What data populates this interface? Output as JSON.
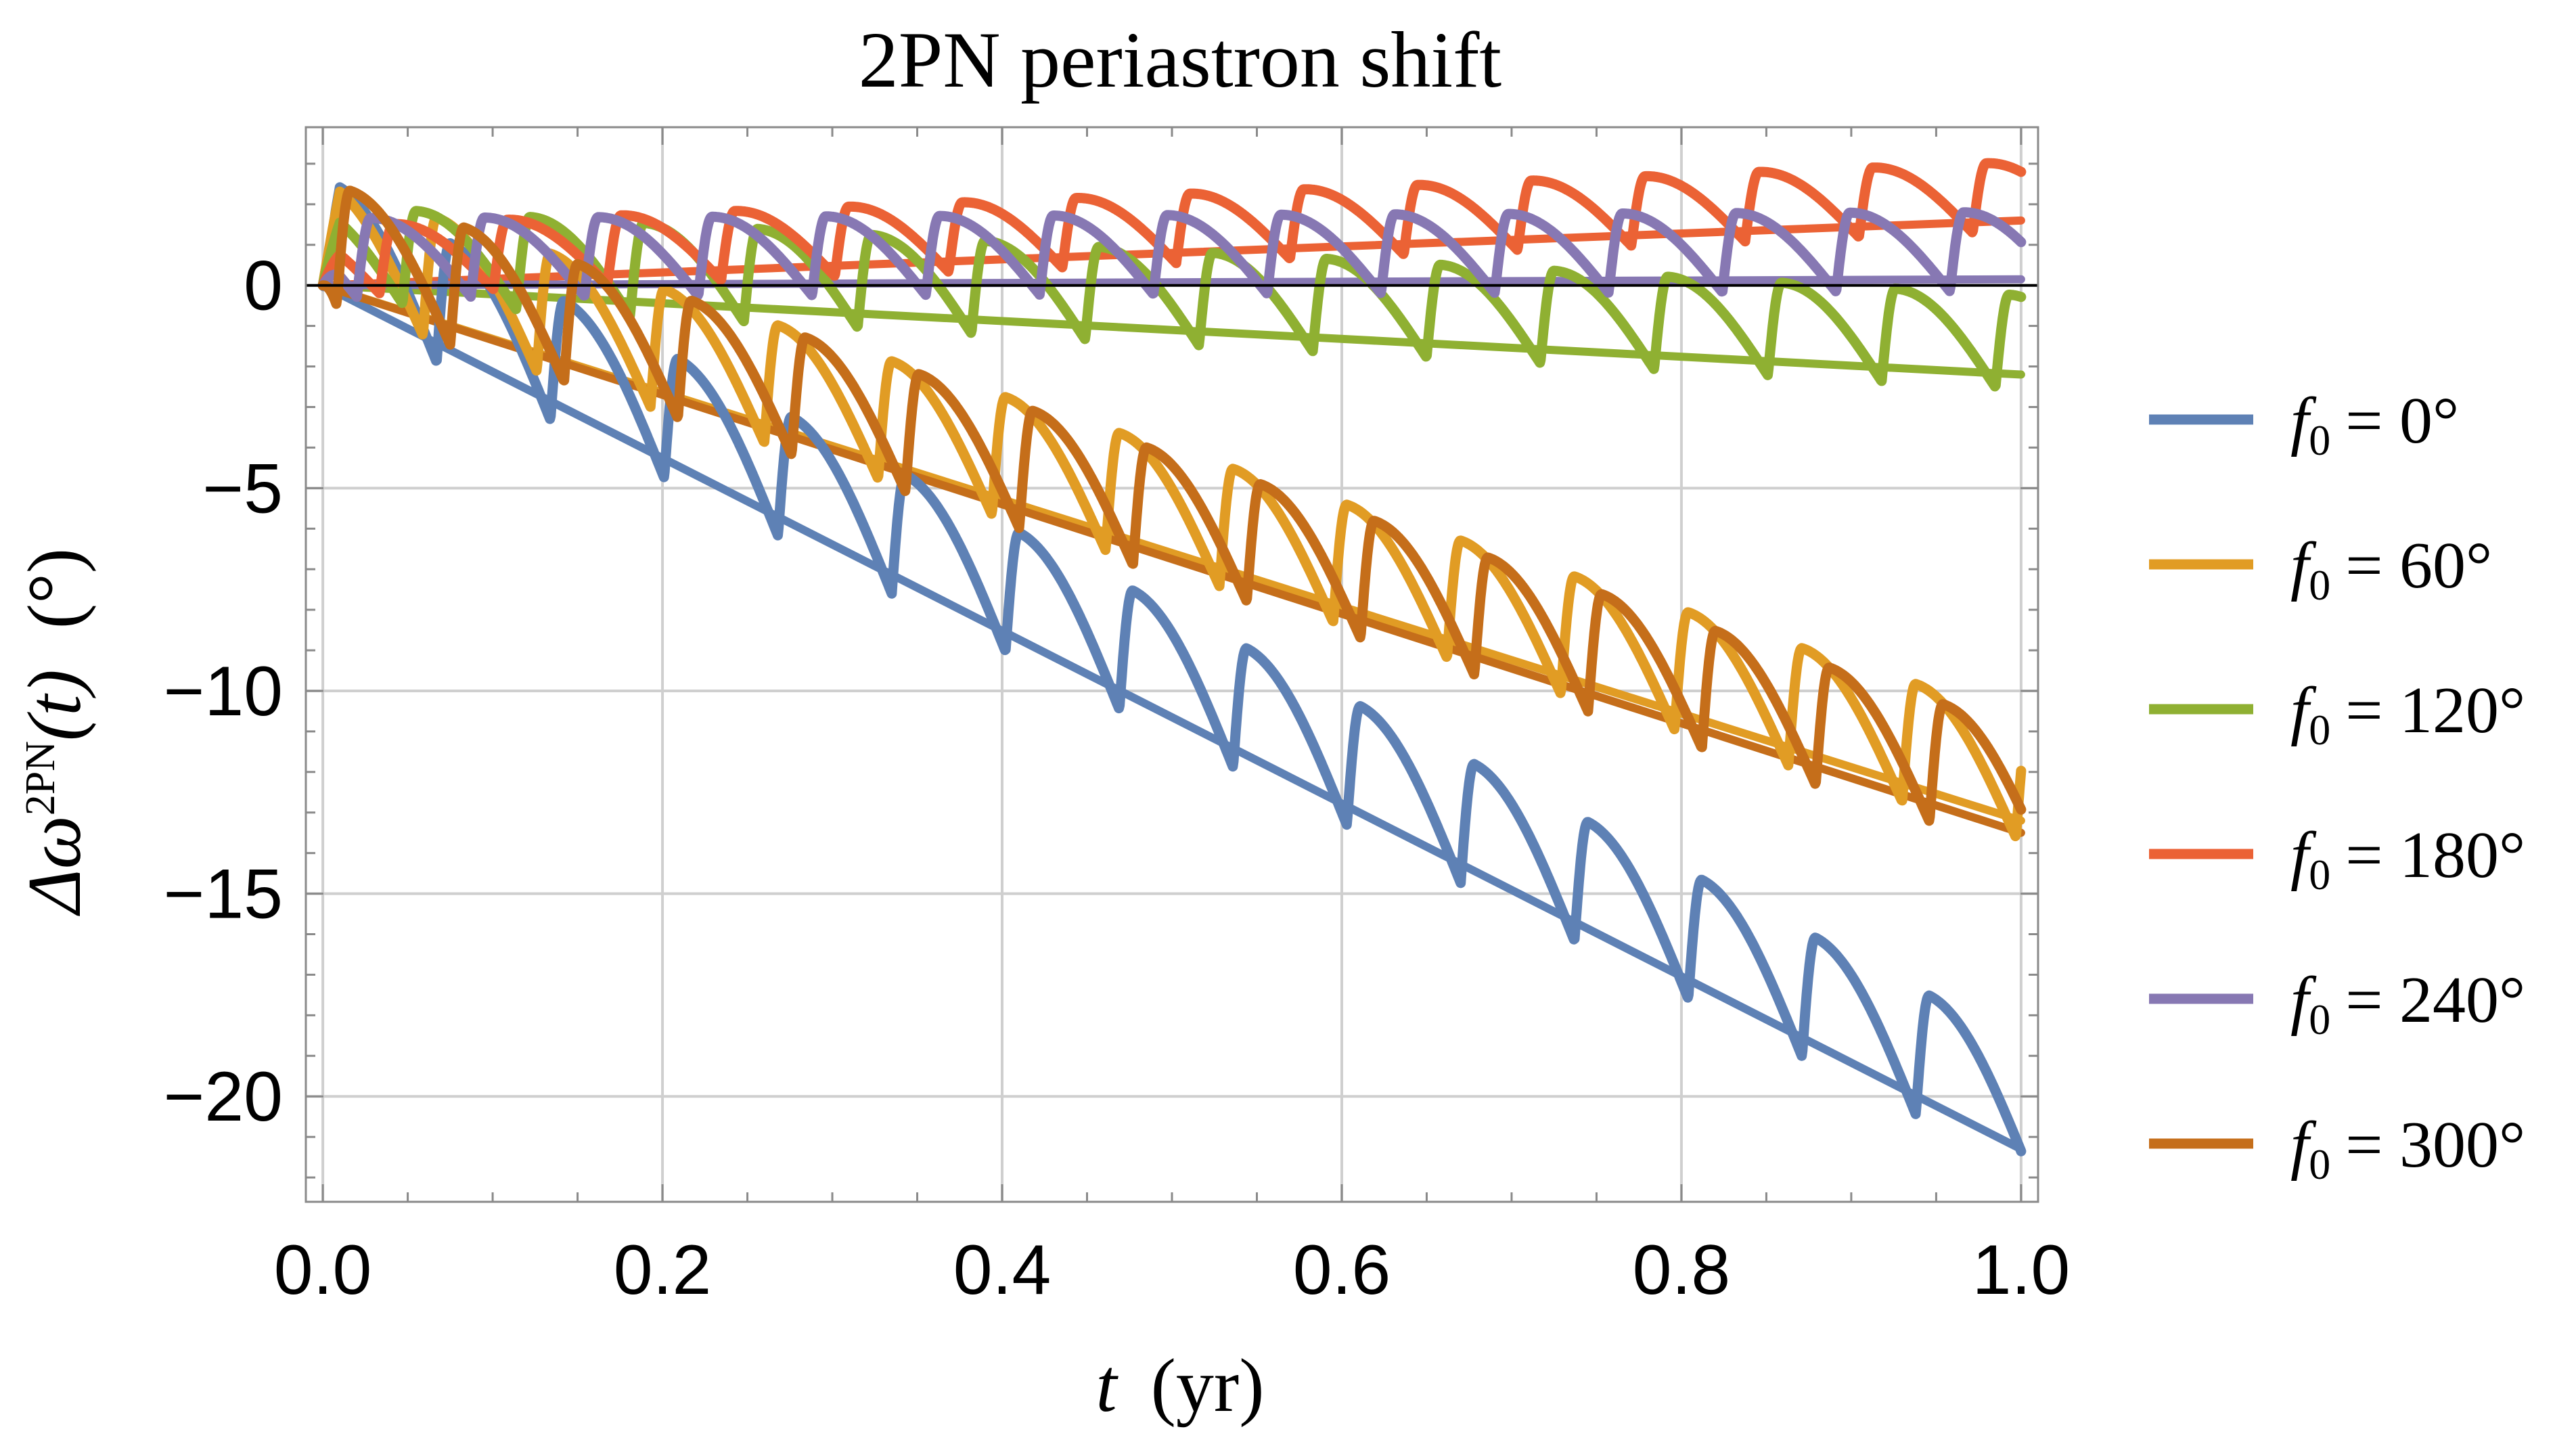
{
  "chart_data": {
    "type": "line",
    "title": "2PN periastron shift",
    "xlabel_var": "t",
    "xlabel_unit": "(yr)",
    "ylabel_main": "Δω",
    "ylabel_sup": "2PN",
    "ylabel_arg": "(t)",
    "ylabel_unit": "(°)",
    "xlim": [
      -0.01,
      1.01
    ],
    "ylim": [
      -22.6,
      3.9
    ],
    "xticks": [
      0.0,
      0.2,
      0.4,
      0.6,
      0.8,
      1.0
    ],
    "xtick_labels": [
      "0.0",
      "0.2",
      "0.4",
      "0.6",
      "0.8",
      "1.0"
    ],
    "yticks": [
      0,
      -5,
      -10,
      -15,
      -20
    ],
    "ytick_labels": [
      "0",
      "−5",
      "−10",
      "−15",
      "−20"
    ],
    "grid": true,
    "legend_position": "right",
    "orbital_period_yr": 0.067,
    "series": [
      {
        "name": "f0 = 0°",
        "var": "f",
        "sub": "0",
        "value": "= 0°",
        "color": "#5E81B5",
        "slope": -21.3,
        "start": 0.0,
        "end": -21.3,
        "amplitude": 3.1,
        "phase": 0.0
      },
      {
        "name": "f0 = 60°",
        "var": "f",
        "sub": "0",
        "value": "= 60°",
        "color": "#E19C24",
        "slope": -13.2,
        "start": 0.0,
        "end": -13.2,
        "amplitude": 3.0,
        "phase": 0.12
      },
      {
        "name": "f0 = 120°",
        "var": "f",
        "sub": "0",
        "value": "= 120°",
        "color": "#8FB032",
        "slope": -2.2,
        "start": 0.0,
        "end": -2.2,
        "amplitude": 2.3,
        "phase": 0.3
      },
      {
        "name": "f0 = 180°",
        "var": "f",
        "sub": "0",
        "value": "= 180°",
        "color": "#EB6235",
        "slope": 1.6,
        "start": 0.0,
        "end": 1.6,
        "amplitude": 1.7,
        "phase": 0.5
      },
      {
        "name": "f0 = 240°",
        "var": "f",
        "sub": "0",
        "value": "= 240°",
        "color": "#8778B3",
        "slope": 0.15,
        "start": 0.0,
        "end": 0.15,
        "amplitude": 1.95,
        "phase": 0.7
      },
      {
        "name": "f0 = 300°",
        "var": "f",
        "sub": "0",
        "value": "= 300°",
        "color": "#C56E1A",
        "slope": -13.5,
        "start": 0.0,
        "end": -13.5,
        "amplitude": 3.0,
        "phase": 0.88
      }
    ]
  }
}
